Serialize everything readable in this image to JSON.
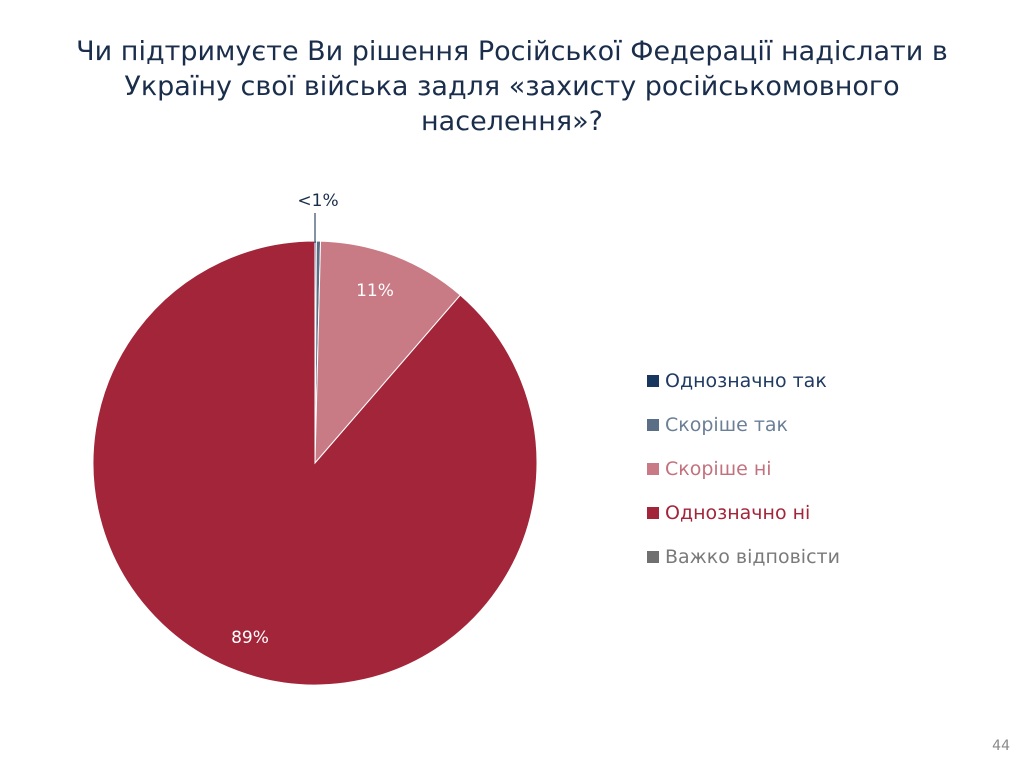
{
  "slide": {
    "title": "Чи підтримуєте Ви рішення Російської Федерації надіслати в Україну свої війська задля «захисту російськомовного населення»?",
    "page_number": "44"
  },
  "colors": {
    "title": "#1a2e4c",
    "slice_border": "#ffffff"
  },
  "chart_data": {
    "type": "pie",
    "title": "Чи підтримуєте Ви рішення Російської Федерації надіслати в Україну свої війська задля «захисту російськомовного населення»?",
    "categories": [
      "Однозначно так",
      "Скоріше так",
      "Скоріше ні",
      "Однозначно ні",
      "Важко відповісти"
    ],
    "values": [
      0.1,
      0.3,
      11,
      89,
      0
    ],
    "data_labels": [
      "",
      "<1%",
      "11%",
      "89%",
      ""
    ],
    "colors": [
      "#17375e",
      "#5a6e86",
      "#c87a85",
      "#a3253a",
      "#707070"
    ],
    "legend_text_colors": [
      "#1f3a63",
      "#6b7f97",
      "#c2727e",
      "#a3253a",
      "#7a7a7a"
    ],
    "legend_position": "right",
    "start_angle_deg": 0,
    "direction": "clockwise"
  }
}
